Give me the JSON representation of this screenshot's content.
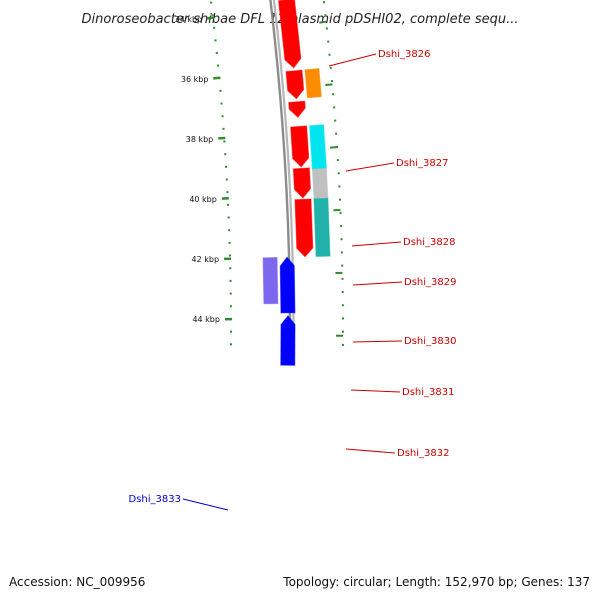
{
  "title": "Dinoroseobacter shibae DFL 12 plasmid pDSHI02, complete sequ...",
  "footer": {
    "accession": "Accession: NC_009956",
    "summary": "Topology: circular; Length: 152,970 bp; Genes: 137"
  },
  "colors": {
    "backbone": "#8c8c8c",
    "tick": "#2e8b2e",
    "cds_forward": "#ff0000",
    "cds_reverse": "#0000ff",
    "reverse_label": "#0000cc",
    "forward_label": "#cc0000"
  },
  "ticks": [
    {
      "label": "34 kbp"
    },
    {
      "label": "36 kbp"
    },
    {
      "label": "38 kbp"
    },
    {
      "label": "40 kbp"
    },
    {
      "label": "42 kbp"
    },
    {
      "label": "44 kbp"
    }
  ],
  "genes": [
    {
      "label": "Dshi_3826",
      "strand": "forward",
      "cog_color": "#7b68ee"
    },
    {
      "label": "Dshi_3827",
      "strand": "forward",
      "cog_color": ""
    },
    {
      "label": "Dshi_3828",
      "strand": "forward",
      "cog_color": "#ff8c00"
    },
    {
      "label": "Dshi_3829",
      "strand": "forward",
      "cog_color": ""
    },
    {
      "label": "Dshi_3830",
      "strand": "forward",
      "cog_color": "#00e5ee"
    },
    {
      "label": "Dshi_3831",
      "strand": "forward",
      "cog_color": "#c0c0c0"
    },
    {
      "label": "Dshi_3832",
      "strand": "forward",
      "cog_color": "#20b2aa"
    },
    {
      "label": "Dshi_3833",
      "strand": "reverse",
      "cog_color": "#7b68ee"
    }
  ]
}
